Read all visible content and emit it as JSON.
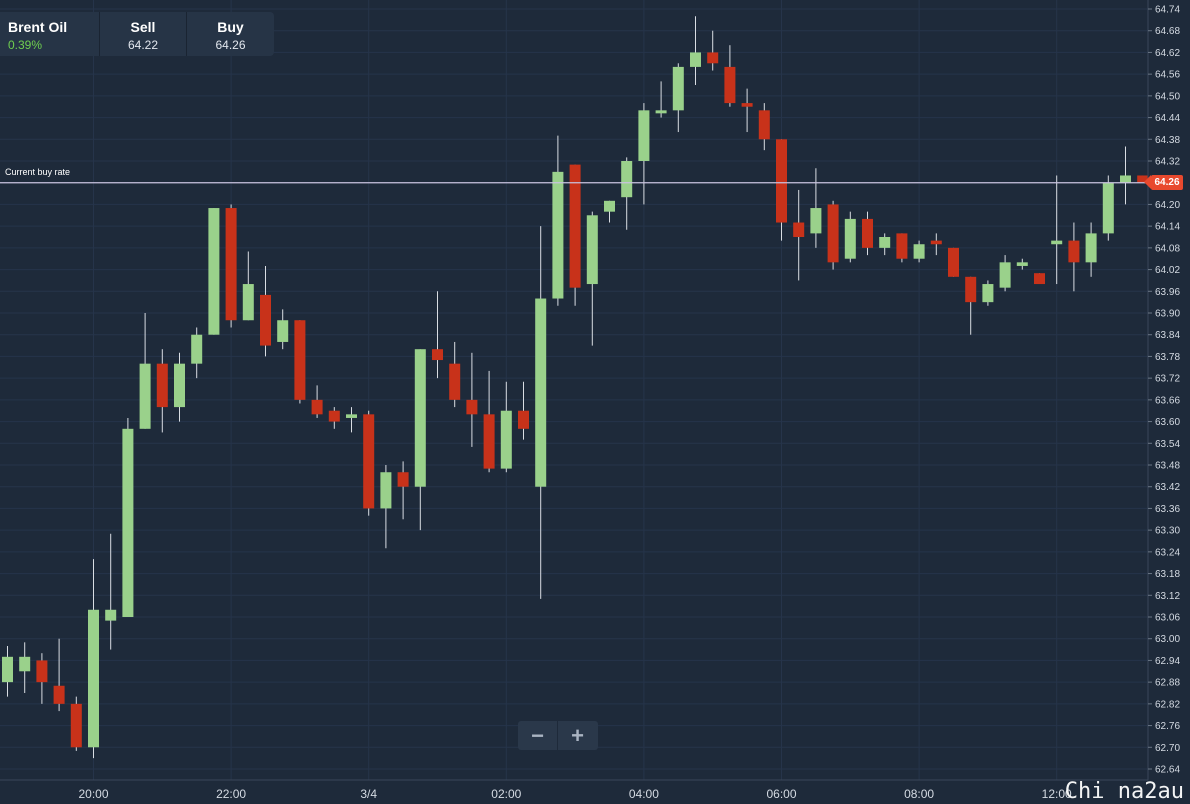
{
  "header": {
    "instrument": "Brent Oil",
    "change": "0.39%",
    "sell_label": "Sell",
    "sell_value": "64.22",
    "buy_label": "Buy",
    "buy_value": "64.26"
  },
  "buy_rate_label": "Current buy rate",
  "current_price": "64.26",
  "controls": {
    "zoom_out": "−",
    "zoom_in": "+"
  },
  "watermark": "Chi na2au",
  "colors": {
    "background": "#1e2a3a",
    "up": "#9ad18b",
    "down": "#c8321a",
    "buy_line": "#c9c3df",
    "badge": "#e8492e"
  },
  "chart_data": {
    "type": "candlestick",
    "instrument": "Brent Oil",
    "ylim": [
      62.62,
      64.76
    ],
    "yticks": [
      62.64,
      62.7,
      62.76,
      62.82,
      62.88,
      62.94,
      63.0,
      63.06,
      63.12,
      63.18,
      63.24,
      63.3,
      63.36,
      63.42,
      63.48,
      63.54,
      63.6,
      63.66,
      63.72,
      63.78,
      63.84,
      63.9,
      63.96,
      64.02,
      64.08,
      64.14,
      64.2,
      64.26,
      64.32,
      64.38,
      64.44,
      64.5,
      64.56,
      64.62,
      64.68,
      64.74
    ],
    "xticks": [
      {
        "label": "20:00",
        "index": 5
      },
      {
        "label": "22:00",
        "index": 13
      },
      {
        "label": "3/4",
        "index": 21
      },
      {
        "label": "02:00",
        "index": 29
      },
      {
        "label": "04:00",
        "index": 37
      },
      {
        "label": "06:00",
        "index": 45
      },
      {
        "label": "08:00",
        "index": 53
      },
      {
        "label": "12:00",
        "index": 61
      }
    ],
    "current_buy_rate": 64.26,
    "candles": [
      {
        "o": 62.88,
        "h": 62.98,
        "l": 62.84,
        "c": 62.95
      },
      {
        "o": 62.91,
        "h": 62.99,
        "l": 62.85,
        "c": 62.95
      },
      {
        "o": 62.94,
        "h": 62.96,
        "l": 62.82,
        "c": 62.88
      },
      {
        "o": 62.87,
        "h": 63.0,
        "l": 62.8,
        "c": 62.82
      },
      {
        "o": 62.82,
        "h": 62.84,
        "l": 62.69,
        "c": 62.7
      },
      {
        "o": 62.7,
        "h": 63.22,
        "l": 62.67,
        "c": 63.08
      },
      {
        "o": 63.05,
        "h": 63.29,
        "l": 62.97,
        "c": 63.08
      },
      {
        "o": 63.06,
        "h": 63.61,
        "l": 63.06,
        "c": 63.58
      },
      {
        "o": 63.58,
        "h": 63.9,
        "l": 63.58,
        "c": 63.76
      },
      {
        "o": 63.76,
        "h": 63.8,
        "l": 63.57,
        "c": 63.64
      },
      {
        "o": 63.64,
        "h": 63.79,
        "l": 63.6,
        "c": 63.76
      },
      {
        "o": 63.76,
        "h": 63.86,
        "l": 63.72,
        "c": 63.84
      },
      {
        "o": 63.84,
        "h": 64.19,
        "l": 63.84,
        "c": 64.19
      },
      {
        "o": 64.19,
        "h": 64.2,
        "l": 63.86,
        "c": 63.88
      },
      {
        "o": 63.88,
        "h": 64.07,
        "l": 63.88,
        "c": 63.98
      },
      {
        "o": 63.95,
        "h": 64.03,
        "l": 63.78,
        "c": 63.81
      },
      {
        "o": 63.82,
        "h": 63.91,
        "l": 63.8,
        "c": 63.88
      },
      {
        "o": 63.88,
        "h": 63.88,
        "l": 63.65,
        "c": 63.66
      },
      {
        "o": 63.66,
        "h": 63.7,
        "l": 63.61,
        "c": 63.62
      },
      {
        "o": 63.63,
        "h": 63.64,
        "l": 63.58,
        "c": 63.6
      },
      {
        "o": 63.61,
        "h": 63.64,
        "l": 63.57,
        "c": 63.62
      },
      {
        "o": 63.62,
        "h": 63.63,
        "l": 63.34,
        "c": 63.36
      },
      {
        "o": 63.36,
        "h": 63.48,
        "l": 63.25,
        "c": 63.46
      },
      {
        "o": 63.46,
        "h": 63.49,
        "l": 63.33,
        "c": 63.42
      },
      {
        "o": 63.42,
        "h": 63.8,
        "l": 63.3,
        "c": 63.8
      },
      {
        "o": 63.8,
        "h": 63.96,
        "l": 63.72,
        "c": 63.77
      },
      {
        "o": 63.76,
        "h": 63.82,
        "l": 63.64,
        "c": 63.66
      },
      {
        "o": 63.66,
        "h": 63.79,
        "l": 63.53,
        "c": 63.62
      },
      {
        "o": 63.62,
        "h": 63.74,
        "l": 63.46,
        "c": 63.47
      },
      {
        "o": 63.47,
        "h": 63.71,
        "l": 63.46,
        "c": 63.63
      },
      {
        "o": 63.63,
        "h": 63.71,
        "l": 63.55,
        "c": 63.58
      },
      {
        "o": 63.42,
        "h": 64.14,
        "l": 63.11,
        "c": 63.94
      },
      {
        "o": 63.94,
        "h": 64.39,
        "l": 63.92,
        "c": 64.29
      },
      {
        "o": 64.31,
        "h": 64.31,
        "l": 63.92,
        "c": 63.97
      },
      {
        "o": 63.98,
        "h": 64.18,
        "l": 63.81,
        "c": 64.17
      },
      {
        "o": 64.18,
        "h": 64.21,
        "l": 64.15,
        "c": 64.21
      },
      {
        "o": 64.22,
        "h": 64.33,
        "l": 64.13,
        "c": 64.32
      },
      {
        "o": 64.32,
        "h": 64.48,
        "l": 64.2,
        "c": 64.46
      },
      {
        "o": 64.46,
        "h": 64.54,
        "l": 64.44,
        "c": 64.46
      },
      {
        "o": 64.46,
        "h": 64.59,
        "l": 64.4,
        "c": 64.58
      },
      {
        "o": 64.58,
        "h": 64.72,
        "l": 64.53,
        "c": 64.62
      },
      {
        "o": 64.62,
        "h": 64.68,
        "l": 64.57,
        "c": 64.59
      },
      {
        "o": 64.58,
        "h": 64.64,
        "l": 64.47,
        "c": 64.48
      },
      {
        "o": 64.48,
        "h": 64.52,
        "l": 64.4,
        "c": 64.47
      },
      {
        "o": 64.46,
        "h": 64.48,
        "l": 64.35,
        "c": 64.38
      },
      {
        "o": 64.38,
        "h": 64.38,
        "l": 64.1,
        "c": 64.15
      },
      {
        "o": 64.15,
        "h": 64.24,
        "l": 63.99,
        "c": 64.11
      },
      {
        "o": 64.12,
        "h": 64.3,
        "l": 64.08,
        "c": 64.19
      },
      {
        "o": 64.2,
        "h": 64.21,
        "l": 64.02,
        "c": 64.04
      },
      {
        "o": 64.05,
        "h": 64.18,
        "l": 64.04,
        "c": 64.16
      },
      {
        "o": 64.16,
        "h": 64.18,
        "l": 64.06,
        "c": 64.08
      },
      {
        "o": 64.08,
        "h": 64.12,
        "l": 64.06,
        "c": 64.11
      },
      {
        "o": 64.12,
        "h": 64.12,
        "l": 64.04,
        "c": 64.05
      },
      {
        "o": 64.05,
        "h": 64.1,
        "l": 64.04,
        "c": 64.09
      },
      {
        "o": 64.1,
        "h": 64.12,
        "l": 64.06,
        "c": 64.09
      },
      {
        "o": 64.08,
        "h": 64.08,
        "l": 64.0,
        "c": 64.0
      },
      {
        "o": 64.0,
        "h": 64.0,
        "l": 63.84,
        "c": 63.93
      },
      {
        "o": 63.93,
        "h": 63.99,
        "l": 63.92,
        "c": 63.98
      },
      {
        "o": 63.97,
        "h": 64.06,
        "l": 63.96,
        "c": 64.04
      },
      {
        "o": 64.03,
        "h": 64.05,
        "l": 64.02,
        "c": 64.04
      },
      {
        "o": 64.01,
        "h": 64.01,
        "l": 63.98,
        "c": 63.98
      },
      {
        "o": 64.09,
        "h": 64.28,
        "l": 63.98,
        "c": 64.1
      },
      {
        "o": 64.1,
        "h": 64.15,
        "l": 63.96,
        "c": 64.04
      },
      {
        "o": 64.04,
        "h": 64.15,
        "l": 64.0,
        "c": 64.12
      },
      {
        "o": 64.12,
        "h": 64.28,
        "l": 64.1,
        "c": 64.26
      },
      {
        "o": 64.26,
        "h": 64.36,
        "l": 64.2,
        "c": 64.28
      },
      {
        "o": 64.28,
        "h": 64.28,
        "l": 64.26,
        "c": 64.26
      }
    ]
  }
}
